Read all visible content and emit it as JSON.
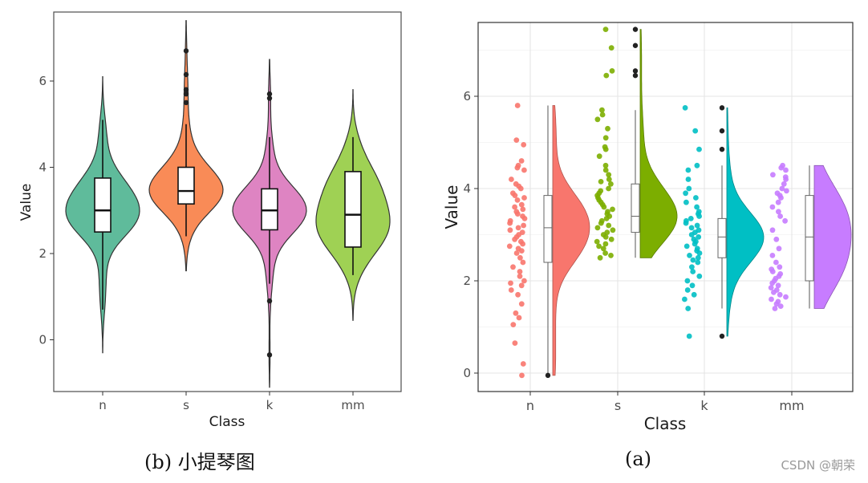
{
  "chart_data": [
    {
      "type": "violin",
      "panel": "b",
      "caption": "(b)  小提琴图",
      "xlabel": "Class",
      "ylabel": "Value",
      "categories": [
        "n",
        "s",
        "k",
        "mm"
      ],
      "yticks": [
        0,
        2,
        4,
        6
      ],
      "ylim": [
        -1.2,
        7.6
      ],
      "grid": false,
      "boxes": [
        {
          "class": "n",
          "min": 0.7,
          "q1": 2.5,
          "median": 3.0,
          "q3": 3.75,
          "max": 5.1,
          "outliers": [],
          "violin_min": -0.3,
          "violin_max": 6.1
        },
        {
          "class": "s",
          "min": 2.4,
          "q1": 3.15,
          "median": 3.45,
          "q3": 4.0,
          "max": 5.0,
          "outliers": [
            5.5,
            5.7,
            5.8,
            6.15,
            6.7
          ],
          "violin_min": 1.6,
          "violin_max": 7.4
        },
        {
          "class": "k",
          "min": 1.3,
          "q1": 2.55,
          "median": 3.0,
          "q3": 3.5,
          "max": 4.7,
          "outliers": [
            0.9,
            -0.35,
            5.6,
            5.7
          ],
          "violin_min": -1.1,
          "violin_max": 6.5
        },
        {
          "class": "mm",
          "min": 1.5,
          "q1": 2.15,
          "median": 2.9,
          "q3": 3.9,
          "max": 4.7,
          "outliers": [],
          "violin_min": 0.45,
          "violin_max": 5.8
        }
      ],
      "colors": [
        "#5FBB9B",
        "#F98B57",
        "#DE84C2",
        "#9FD154"
      ]
    },
    {
      "type": "raincloud",
      "panel": "a",
      "caption": "(a)",
      "xlabel": "Class",
      "ylabel": "Value",
      "categories": [
        "n",
        "s",
        "k",
        "mm"
      ],
      "yticks": [
        0,
        2,
        4,
        6
      ],
      "ylim": [
        -0.4,
        7.6
      ],
      "grid": true,
      "boxes": [
        {
          "class": "n",
          "min": -0.05,
          "q1": 2.4,
          "median": 3.15,
          "q3": 3.85,
          "max": 5.8,
          "outliers": [
            -0.05
          ]
        },
        {
          "class": "s",
          "min": 2.5,
          "q1": 3.05,
          "median": 3.4,
          "q3": 4.1,
          "max": 5.7,
          "outliers": [
            6.45,
            6.55,
            7.1,
            7.45
          ]
        },
        {
          "class": "k",
          "min": 1.4,
          "q1": 2.5,
          "median": 2.95,
          "q3": 3.35,
          "max": 4.5,
          "outliers": [
            0.8,
            4.85,
            5.25,
            5.75
          ]
        },
        {
          "class": "mm",
          "min": 1.4,
          "q1": 2.0,
          "median": 2.95,
          "q3": 3.85,
          "max": 4.5,
          "outliers": []
        }
      ],
      "cloud_ranges": [
        [
          -0.05,
          5.8
        ],
        [
          2.5,
          7.45
        ],
        [
          0.8,
          5.75
        ],
        [
          1.4,
          4.5
        ]
      ],
      "points": [
        {
          "class": "n",
          "values": [
            5.8,
            5.05,
            4.95,
            4.6,
            4.5,
            4.45,
            4.4,
            4.2,
            4.1,
            4.05,
            4.0,
            3.9,
            3.85,
            3.8,
            3.75,
            3.65,
            3.6,
            3.55,
            3.5,
            3.45,
            3.4,
            3.35,
            3.3,
            3.25,
            3.2,
            3.15,
            3.1,
            3.05,
            3.0,
            2.95,
            2.9,
            2.85,
            2.8,
            2.75,
            2.7,
            2.65,
            2.6,
            2.5,
            2.4,
            2.3,
            2.2,
            2.1,
            2.0,
            1.95,
            1.9,
            1.8,
            1.7,
            1.5,
            1.3,
            1.2,
            1.05,
            0.65,
            0.2,
            -0.05
          ]
        },
        {
          "class": "s",
          "values": [
            7.45,
            7.05,
            6.55,
            6.45,
            5.7,
            5.6,
            5.5,
            5.3,
            5.1,
            4.9,
            4.85,
            4.7,
            4.5,
            4.4,
            4.3,
            4.2,
            4.15,
            4.1,
            4.0,
            3.95,
            3.9,
            3.85,
            3.8,
            3.75,
            3.7,
            3.65,
            3.6,
            3.55,
            3.5,
            3.45,
            3.4,
            3.35,
            3.3,
            3.25,
            3.2,
            3.15,
            3.1,
            3.05,
            3.0,
            2.95,
            2.9,
            2.85,
            2.8,
            2.75,
            2.7,
            2.6,
            2.55,
            2.5
          ]
        },
        {
          "class": "k",
          "values": [
            5.75,
            5.25,
            4.85,
            4.5,
            4.4,
            4.2,
            4.0,
            3.9,
            3.8,
            3.7,
            3.6,
            3.5,
            3.45,
            3.4,
            3.35,
            3.3,
            3.25,
            3.2,
            3.15,
            3.1,
            3.05,
            3.0,
            2.95,
            2.9,
            2.85,
            2.8,
            2.75,
            2.7,
            2.65,
            2.6,
            2.55,
            2.5,
            2.45,
            2.4,
            2.3,
            2.2,
            2.1,
            2.0,
            1.9,
            1.8,
            1.7,
            1.6,
            1.4,
            0.8
          ]
        },
        {
          "class": "mm",
          "values": [
            4.5,
            4.45,
            4.4,
            4.3,
            4.25,
            4.2,
            4.1,
            4.0,
            3.95,
            3.9,
            3.85,
            3.8,
            3.7,
            3.6,
            3.5,
            3.4,
            3.3,
            3.1,
            2.9,
            2.7,
            2.55,
            2.4,
            2.3,
            2.25,
            2.2,
            2.15,
            2.1,
            2.05,
            2.0,
            1.95,
            1.9,
            1.85,
            1.8,
            1.75,
            1.7,
            1.65,
            1.6,
            1.55,
            1.5,
            1.45,
            1.4
          ]
        }
      ],
      "colors": [
        "#F8766D",
        "#7CAE00",
        "#00BFC4",
        "#C77CFF"
      ]
    }
  ],
  "watermark": "CSDN @朝荣"
}
